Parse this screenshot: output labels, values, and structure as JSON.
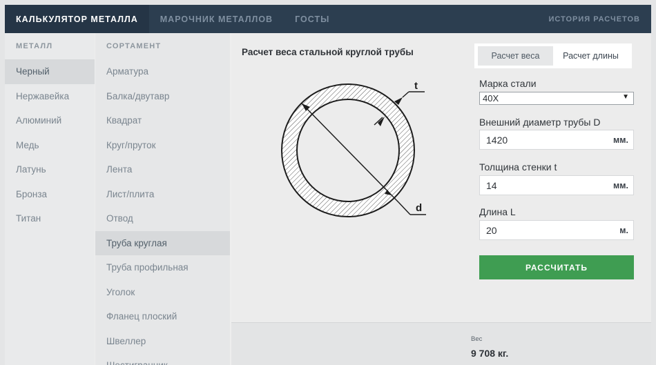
{
  "nav": {
    "tabs": [
      {
        "label": "КАЛЬКУЛЯТОР МЕТАЛЛА",
        "active": true
      },
      {
        "label": "МАРОЧНИК МЕТАЛЛОВ",
        "active": false
      },
      {
        "label": "ГОСТЫ",
        "active": false
      }
    ],
    "history": "ИСТОРИЯ РАСЧЕТОВ"
  },
  "metal": {
    "header": "МЕТАЛЛ",
    "items": [
      "Черный",
      "Нержавейка",
      "Алюминий",
      "Медь",
      "Латунь",
      "Бронза",
      "Титан"
    ],
    "active_index": 0
  },
  "assortment": {
    "header": "СОРТАМЕНТ",
    "items": [
      "Арматура",
      "Балка/двутавр",
      "Квадрат",
      "Круг/пруток",
      "Лента",
      "Лист/плита",
      "Отвод",
      "Труба круглая",
      "Труба профильная",
      "Уголок",
      "Фланец плоский",
      "Швеллер",
      "Шестигранник"
    ],
    "active_index": 7
  },
  "calc": {
    "title": "Расчет веса стальной круглой трубы",
    "diagram_labels": {
      "t": "t",
      "d": "d"
    },
    "mode_weight": "Расчет веса",
    "mode_length": "Расчет длины",
    "active_mode": "weight",
    "steel_label": "Марка стали",
    "steel_value": "40Х",
    "diameter_label": "Внешний диаметр трубы D",
    "diameter_value": "1420",
    "diameter_unit": "мм.",
    "wall_label": "Толщина стенки t",
    "wall_value": "14",
    "wall_unit": "мм.",
    "length_label": "Длина L",
    "length_value": "20",
    "length_unit": "м.",
    "button": "РАССЧИТАТЬ"
  },
  "result": {
    "label": "Вес",
    "value": "9 708 кг."
  },
  "colors": {
    "nav_bg": "#2c3e50",
    "button_green": "#3f9d52"
  }
}
